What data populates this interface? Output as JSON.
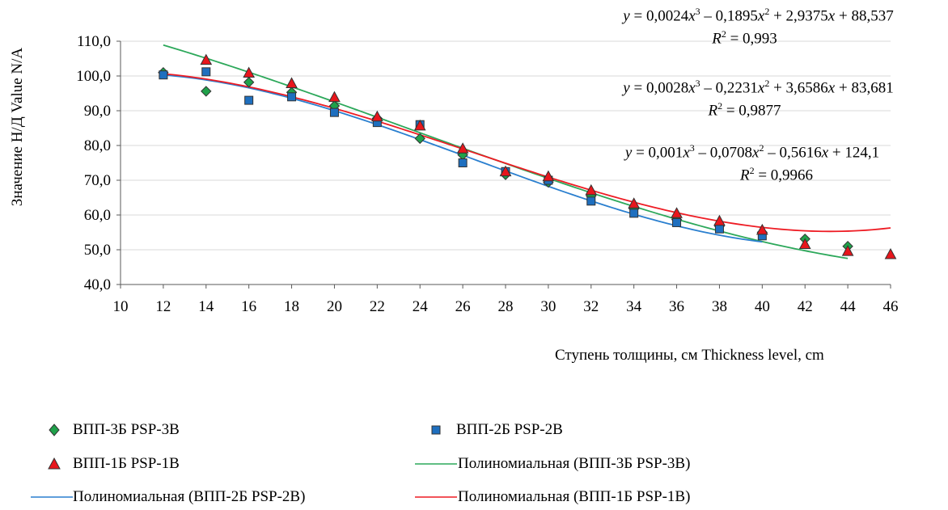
{
  "chart_data": {
    "type": "scatter",
    "title": "",
    "xlabel": "Ступень толщины, см Thickness level, cm",
    "ylabel": "Значение Н/Д Value N/A",
    "xlim": [
      10,
      46
    ],
    "ylim": [
      40,
      110
    ],
    "xticks": [
      "10",
      "12",
      "14",
      "16",
      "18",
      "20",
      "22",
      "24",
      "26",
      "28",
      "30",
      "32",
      "34",
      "36",
      "38",
      "40",
      "42",
      "44",
      "46"
    ],
    "yticks": [
      "40,0",
      "50,0",
      "60,0",
      "70,0",
      "80,0",
      "90,0",
      "100,0",
      "110,0"
    ],
    "grid": "horizontal",
    "legend_position": "bottom",
    "series": [
      {
        "name": "ВПП-3Б PSP-3B",
        "marker": "diamond",
        "color": "#1fa14a",
        "x": [
          12,
          14,
          16,
          18,
          20,
          22,
          24,
          26,
          28,
          30,
          32,
          34,
          36,
          38,
          40,
          42,
          44
        ],
        "y": [
          101.0,
          95.6,
          98.2,
          95.3,
          91.4,
          87.8,
          82.0,
          77.3,
          71.6,
          69.4,
          65.5,
          61.8,
          58.7,
          56.8,
          55.0,
          53.1,
          51.0
        ]
      },
      {
        "name": "ВПП-2Б PSP-2B",
        "marker": "square",
        "color": "#1e6fbf",
        "x": [
          12,
          14,
          16,
          18,
          20,
          22,
          24,
          26,
          28,
          30,
          32,
          34,
          36,
          38,
          40
        ],
        "y": [
          100.3,
          101.2,
          93.0,
          94.0,
          89.5,
          86.6,
          86.0,
          75.0,
          72.5,
          70.0,
          64.0,
          60.5,
          57.8,
          56.0,
          54.0
        ]
      },
      {
        "name": "ВПП-1Б PSP-1B",
        "marker": "triangle",
        "color": "#e8161c",
        "x": [
          14,
          16,
          18,
          20,
          22,
          24,
          26,
          28,
          30,
          32,
          34,
          36,
          38,
          40,
          42,
          44,
          46
        ],
        "y": [
          104.5,
          100.8,
          97.8,
          93.8,
          88.2,
          85.6,
          79.0,
          72.4,
          71.0,
          67.0,
          63.2,
          60.4,
          58.2,
          55.6,
          51.5,
          49.5,
          48.6
        ]
      }
    ],
    "trendlines": [
      {
        "name": "Полиномиальная (ВПП-3Б PSP-3B)",
        "color": "#2ca85a",
        "x_range": [
          12,
          44
        ],
        "coef": [
          0.001,
          -0.0708,
          -0.5616,
          124.1
        ]
      },
      {
        "name": "Полиномиальная (ВПП-2Б PSP-2B)",
        "color": "#2a7fcf",
        "x_range": [
          12,
          40
        ],
        "coef": [
          0.0028,
          -0.2231,
          3.6586,
          83.681
        ]
      },
      {
        "name": "Полиномиальная (ВПП-1Б PSP-1B)",
        "color": "#ee1c24",
        "x_range": [
          12,
          46
        ],
        "coef": [
          0.0024,
          -0.1895,
          2.9375,
          88.537
        ]
      }
    ],
    "equations": [
      {
        "lead": "y",
        "parts": [
          " = 0,0024",
          "x",
          "3",
          " – 0,1895",
          "x",
          "2",
          " + 2,9375",
          "x",
          " + 88,537"
        ],
        "r2_label": "R",
        "r2_value": " = 0,993"
      },
      {
        "lead": "y",
        "parts": [
          " = 0,0028",
          "x",
          "3",
          " – 0,2231",
          "x",
          "2",
          " + 3,6586",
          "x",
          " + 83,681"
        ],
        "r2_label": "R",
        "r2_value": " = 0,9877"
      },
      {
        "lead": "y",
        "parts": [
          " = 0,001",
          "x",
          "3",
          " – 0,0708",
          "x",
          "2",
          " – 0,5616",
          "x",
          " + 124,1"
        ],
        "r2_label": "R",
        "r2_value": " = 0,9966"
      }
    ]
  },
  "legend": {
    "items": [
      {
        "label": "ВПП-3Б PSP-3B",
        "kind": "diamond",
        "color": "#1fa14a"
      },
      {
        "label": "ВПП-2Б PSP-2B",
        "kind": "square",
        "color": "#1e6fbf"
      },
      {
        "label": "ВПП-1Б PSP-1B",
        "kind": "triangle",
        "color": "#e8161c"
      },
      {
        "label": "Полиномиальная (ВПП-3Б PSP-3B)",
        "kind": "line",
        "color": "#2ca85a"
      },
      {
        "label": "Полиномиальная (ВПП-2Б PSP-2B)",
        "kind": "line",
        "color": "#2a7fcf"
      },
      {
        "label": "Полиномиальная (ВПП-1Б PSP-1B)",
        "kind": "line",
        "color": "#ee1c24"
      }
    ]
  }
}
